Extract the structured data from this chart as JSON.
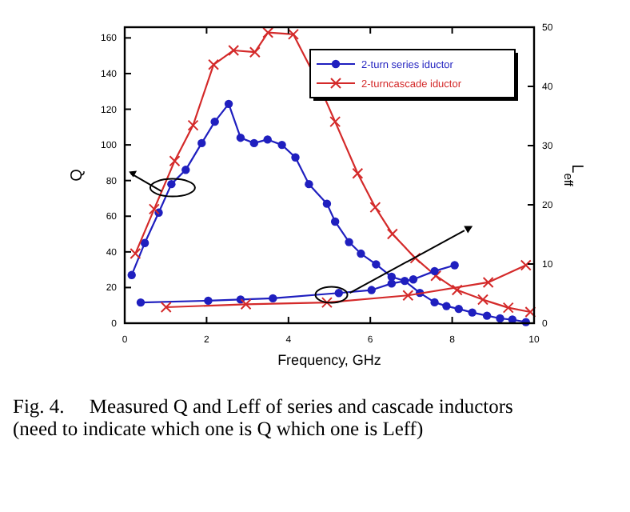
{
  "chart_data": {
    "type": "line",
    "xlabel": "Frequency, GHz",
    "ylabel": "Q",
    "y2label": "L$_{eff}$",
    "xlim": [
      0,
      10
    ],
    "xticks": [
      0,
      2,
      4,
      6,
      8,
      10
    ],
    "ylim": [
      0,
      166
    ],
    "yticks": [
      0,
      20,
      40,
      60,
      80,
      100,
      120,
      140,
      160
    ],
    "y2lim": [
      0,
      50
    ],
    "y2ticks": [
      0,
      10,
      20,
      30,
      40,
      50
    ],
    "grid": false,
    "legend": "top right",
    "series": [
      {
        "name": "2-turn series iductor",
        "color": "#1f1fbf",
        "marker": "circle",
        "x": [
          0.17,
          0.49,
          0.83,
          1.14,
          1.49,
          1.88,
          2.2,
          2.54,
          2.83,
          3.16,
          3.49,
          3.84,
          4.17,
          4.5,
          4.94,
          5.14,
          5.48,
          5.77,
          6.14,
          6.52,
          6.84,
          7.21,
          7.57,
          7.86,
          8.16,
          8.49,
          8.85,
          9.17,
          9.47,
          9.8
        ],
        "values": [
          27,
          45,
          62,
          78,
          86,
          101,
          113,
          123,
          104,
          101,
          103,
          100,
          93,
          78,
          67,
          57,
          45.5,
          39,
          33,
          26,
          23.7,
          17,
          11.7,
          9.6,
          8,
          6,
          4.2,
          2.7,
          2,
          0.6
        ]
      },
      {
        "name": "2-turncascade iductor",
        "color": "#d42a2a",
        "marker": "cross",
        "x": [
          0.26,
          0.72,
          1.22,
          1.67,
          2.17,
          2.66,
          3.18,
          3.5,
          4.12,
          4.7,
          5.14,
          5.69,
          6.12,
          6.54,
          7.1,
          7.6,
          8.12,
          8.75,
          9.37,
          9.91
        ],
        "values": [
          39,
          64,
          91,
          111,
          145,
          153,
          152,
          163,
          162,
          136,
          113,
          84,
          65,
          50,
          36.5,
          26.6,
          18.6,
          13.2,
          8.7,
          6.3
        ]
      },
      {
        "color": "#1f1fbf",
        "marker": "circle",
        "axis": "y2",
        "x": [
          0.39,
          2.04,
          2.83,
          3.62,
          5.23,
          6.03,
          6.52,
          7.05,
          7.57,
          8.06
        ],
        "values": [
          3.5,
          3.8,
          4.0,
          4.2,
          5.1,
          5.6,
          6.7,
          7.4,
          8.8,
          9.8
        ]
      },
      {
        "color": "#d42a2a",
        "marker": "cross",
        "axis": "y2",
        "x": [
          1.01,
          2.96,
          4.94,
          6.92,
          8.88,
          9.8
        ],
        "values": [
          2.7,
          3.2,
          3.5,
          4.7,
          6.9,
          9.8
        ]
      }
    ],
    "annotations": [
      "Fig. 4.     Measured Q and Leff of series and cascade inductors",
      "(need to indicate which one is Q which one is Leff)"
    ]
  }
}
